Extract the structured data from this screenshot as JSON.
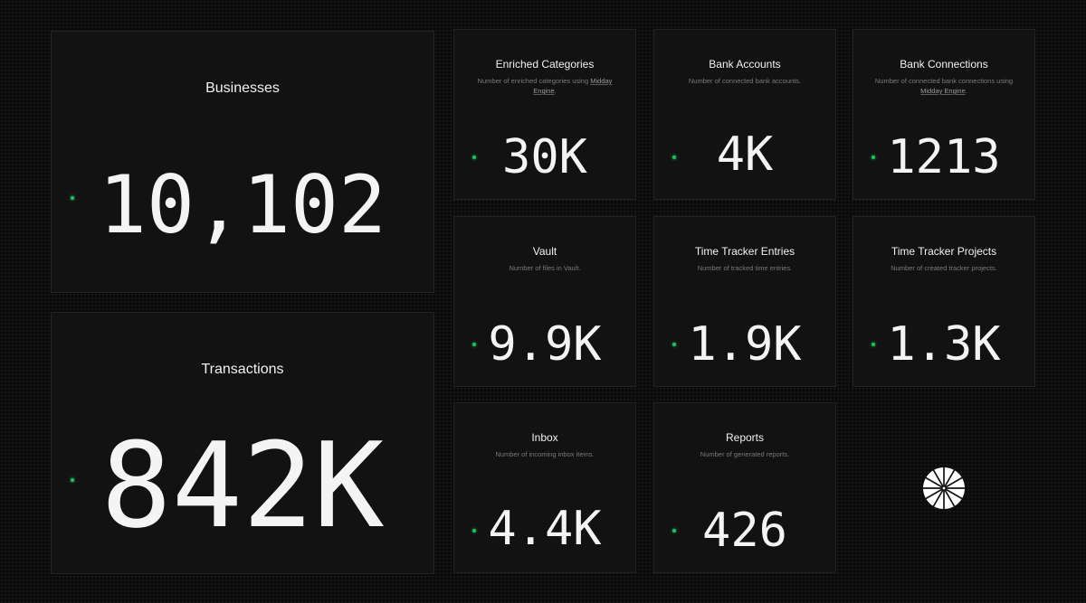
{
  "stats": {
    "businesses": {
      "title": "Businesses",
      "value": "10,102"
    },
    "transactions": {
      "title": "Transactions",
      "value": "842K"
    },
    "enriched_categories": {
      "title": "Enriched Categories",
      "desc_before": "Number of enriched categories using ",
      "desc_link": "Midday Engine",
      "desc_after": ".",
      "value": "30K"
    },
    "bank_accounts": {
      "title": "Bank Accounts",
      "desc": "Number of connected bank accounts.",
      "value": "4K"
    },
    "bank_connections": {
      "title": "Bank Connections",
      "desc_before": "Number of connected bank connections using ",
      "desc_link": "Midday Engine",
      "desc_after": ".",
      "value": "1213"
    },
    "vault": {
      "title": "Vault",
      "desc": "Number of files in Vault.",
      "value": "9.9K"
    },
    "time_tracker_entries": {
      "title": "Time Tracker Entries",
      "desc": "Number of tracked time entries.",
      "value": "1.9K"
    },
    "time_tracker_projects": {
      "title": "Time Tracker Projects",
      "desc": "Number of created tracker projects.",
      "value": "1.3K"
    },
    "inbox": {
      "title": "Inbox",
      "desc": "Number of incoming inbox items.",
      "value": "4.4K"
    },
    "reports": {
      "title": "Reports",
      "desc": "Number of generated reports.",
      "value": "426"
    }
  },
  "colors": {
    "background": "#0b0b0b",
    "card": "#121212",
    "card_border": "#232323",
    "live_dot": "#1fc15a",
    "text": "#f4f4f4",
    "muted": "#7a7a7a"
  },
  "icons": {
    "live_indicator": "green-dot-icon",
    "brand_logo": "midday-logo-icon"
  }
}
